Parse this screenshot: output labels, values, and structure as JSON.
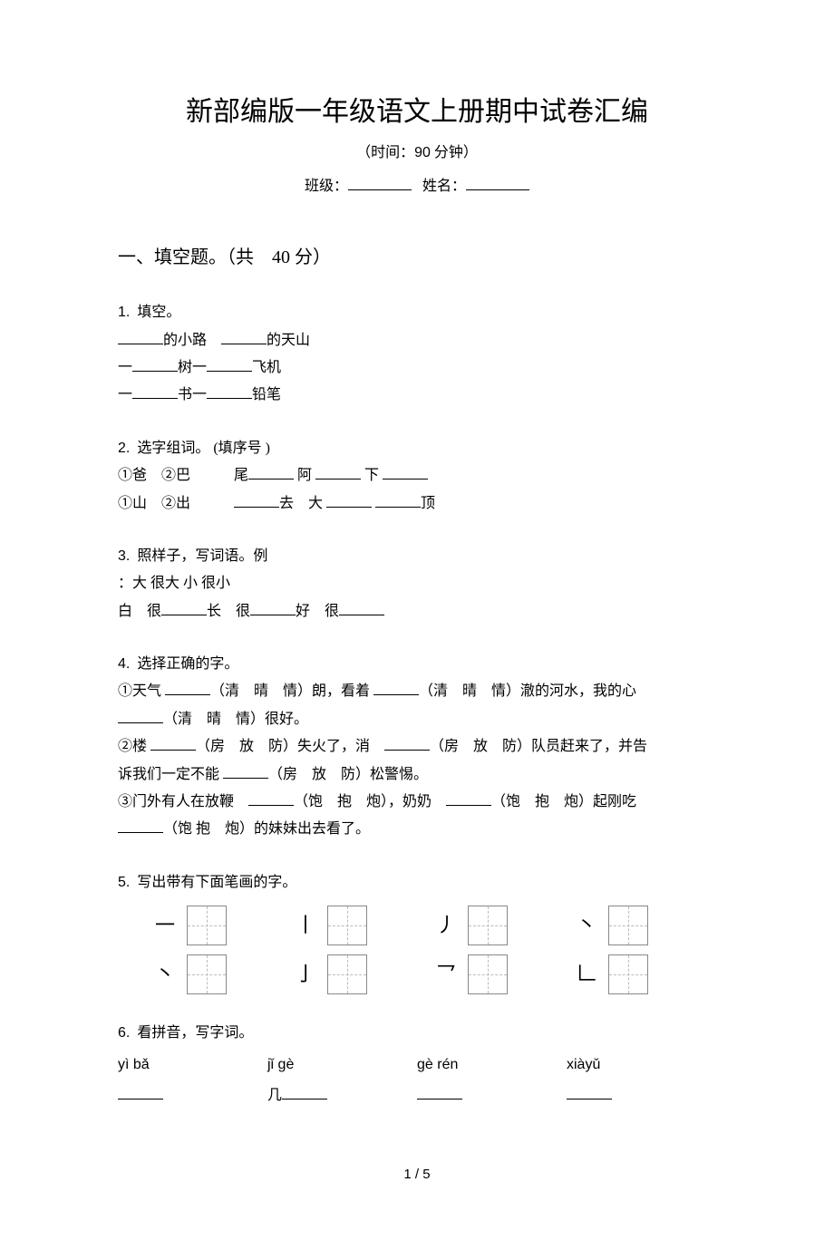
{
  "title": "新部编版一年级语文上册期中试卷汇编",
  "time_prefix": "（时间：",
  "time_value": "90",
  "time_suffix": " 分钟）",
  "class_label": "班级：",
  "name_label": "姓名：",
  "section1": {
    "header": "一、填空题。（共　40 分）"
  },
  "q1": {
    "num": "1.",
    "label": "填空。",
    "line1_a": "的小路　",
    "line1_b": "的天山",
    "line2_a": "一",
    "line2_b": "树一",
    "line2_c": "飞机",
    "line3_a": "一",
    "line3_b": "书一",
    "line3_c": "铅笔"
  },
  "q2": {
    "num": "2.",
    "label": "选字组词。 (填序号 )",
    "line1_a": "①爸　②巴　　　尾",
    "line1_b": " 阿 ",
    "line1_c": " 下 ",
    "line2_a": "①山　②出　　　",
    "line2_b": "去　大 ",
    "line2_c": "顶"
  },
  "q3": {
    "num": "3.",
    "label": "照样子，写词语。例",
    "line1": "：大 很大 小 很小",
    "line2_a": "白　很",
    "line2_b": "长　很",
    "line2_c": "好　很"
  },
  "q4": {
    "num": "4.",
    "label": "选择正确的字。",
    "line1_a": "①天气 ",
    "line1_b": "（清　晴　情）朗，看着 ",
    "line1_c": "（清　晴　情）澈的河水，我的心",
    "line1_d": "（清　晴　情）很好。",
    "line2_a": "②楼 ",
    "line2_b": "（房　放　防）失火了，消　",
    "line2_c": "（房　放　防）队员赶来了，并告",
    "line2_d": "诉我们一定不能 ",
    "line2_e": "（房　放　防）松警惕。",
    "line3_a": "③门外有人在放鞭　",
    "line3_b": "（饱　抱　炮），奶奶　",
    "line3_c": "（饱　抱　炮）起刚吃",
    "line3_d": "（饱 抱　炮）的妹妹出去看了。"
  },
  "q5": {
    "num": "5.",
    "label": "写出带有下面笔画的字。",
    "row1": [
      "一",
      "丨",
      "丿",
      "丶"
    ],
    "row2": [
      "丶",
      "亅",
      "乛",
      "𠃊"
    ]
  },
  "q6": {
    "num": "6.",
    "label": "看拼音，写字词。",
    "pinyin": [
      "yì bǎ",
      "jǐ gè",
      "gè rén",
      "xiàyǔ"
    ],
    "prefill": "几"
  },
  "page_num": "1 / 5"
}
